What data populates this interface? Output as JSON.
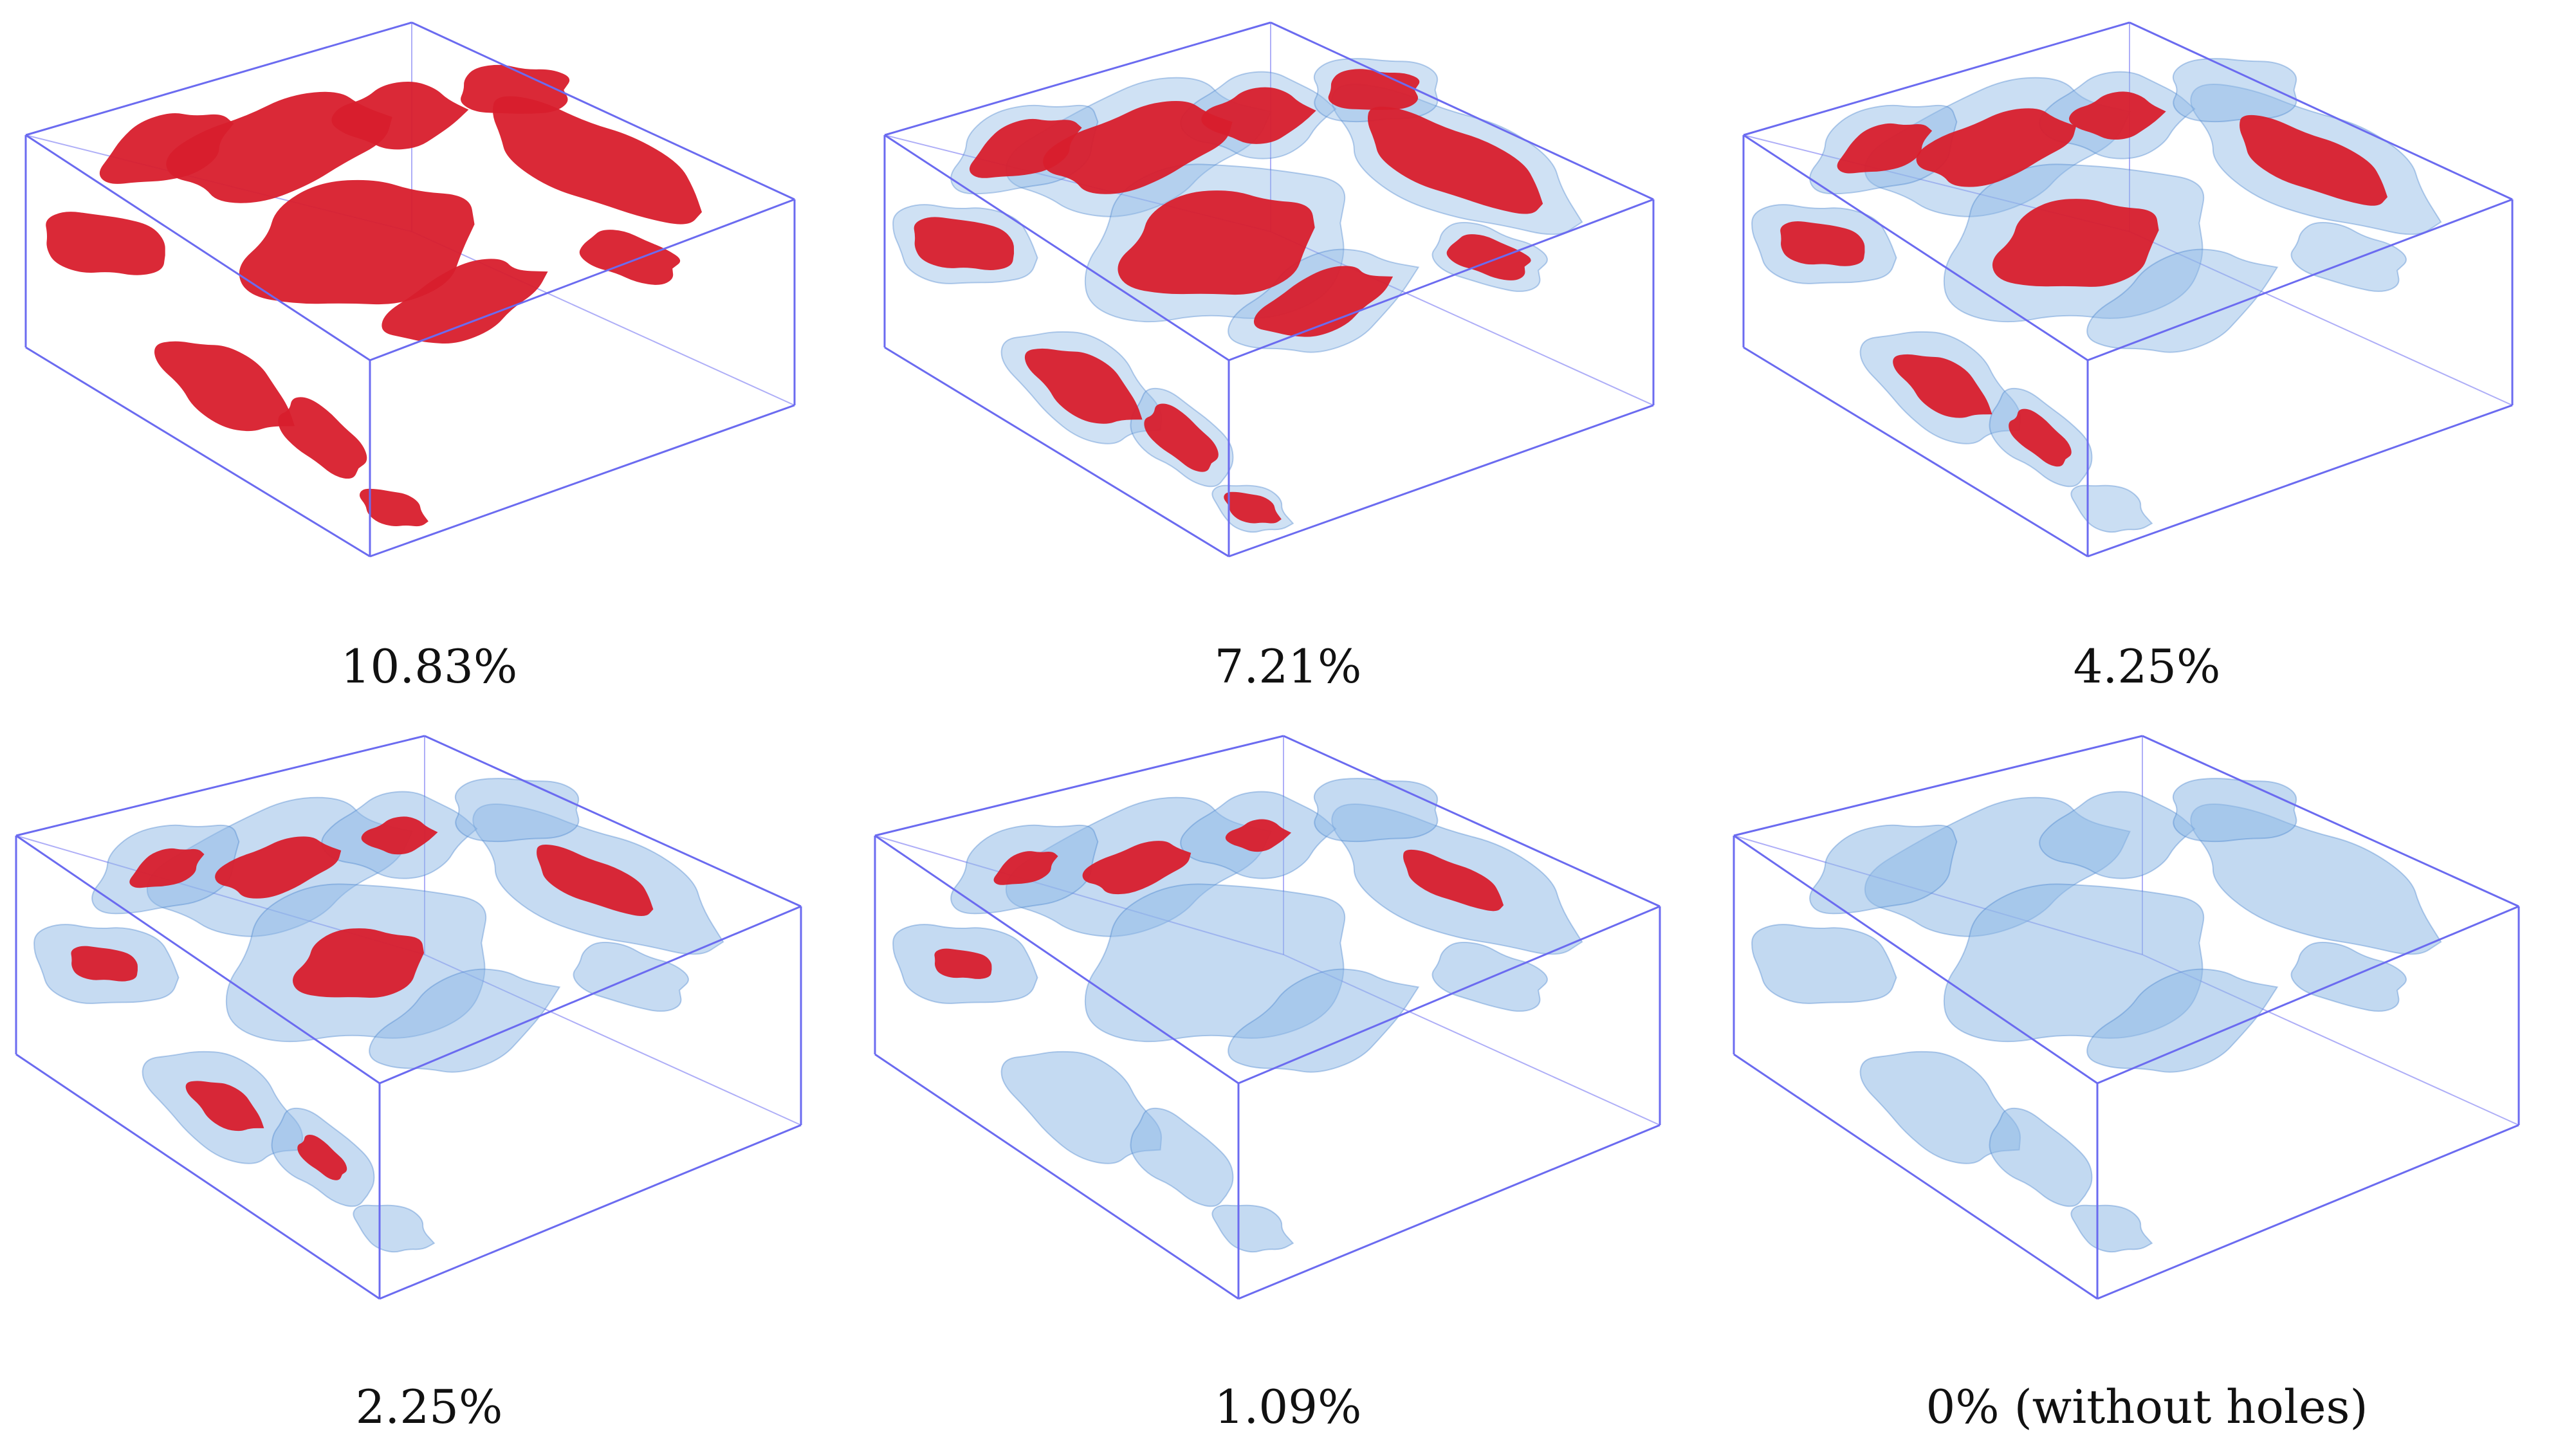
{
  "colors": {
    "box_edge": "#6b6bf0",
    "red_region": "#d81e2c",
    "blue_region": "#8fb9e6",
    "blue_dark": "#3a78c8"
  },
  "panels": [
    {
      "caption": "10.83%",
      "red_level": 1.0,
      "blue_level": 0.0
    },
    {
      "caption": "7.21%",
      "red_level": 0.75,
      "blue_level": 0.4
    },
    {
      "caption": "4.25%",
      "red_level": 0.55,
      "blue_level": 0.6
    },
    {
      "caption": "2.25%",
      "red_level": 0.32,
      "blue_level": 0.8
    },
    {
      "caption": "1.09%",
      "red_level": 0.2,
      "blue_level": 0.9
    },
    {
      "caption": "0% (without holes)",
      "red_level": 0.0,
      "blue_level": 1.0
    }
  ]
}
